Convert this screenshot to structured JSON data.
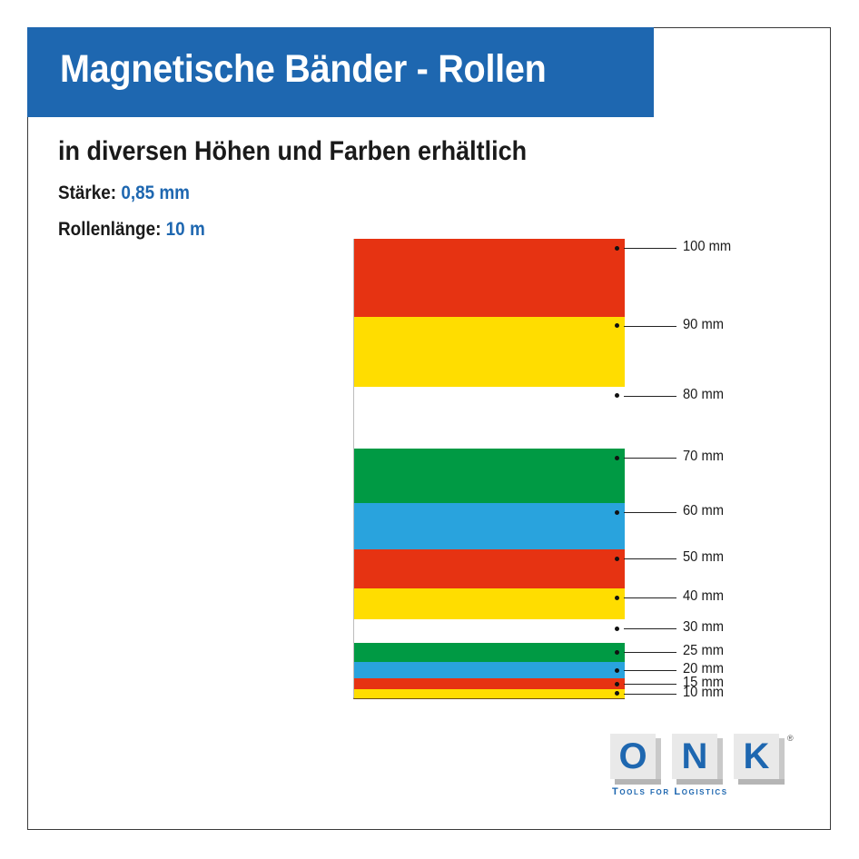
{
  "title": "Magnetische Bänder - Rollen",
  "subtitle": "in diversen Höhen und Farben erhältlich",
  "specs": {
    "thickness_label": "Stärke:",
    "thickness_value": "0,85 mm",
    "length_label": "Rollenlänge:",
    "length_value": "10 m"
  },
  "colors": {
    "brand_blue": "#1e67b0",
    "red": "#e63312",
    "yellow": "#ffdd00",
    "white": "#ffffff",
    "green": "#009a44",
    "blue": "#29a3dd"
  },
  "bands": [
    {
      "label": "100 mm",
      "height_mm": 100,
      "color": "red"
    },
    {
      "label": "90 mm",
      "height_mm": 90,
      "color": "yellow"
    },
    {
      "label": "80 mm",
      "height_mm": 80,
      "color": "white"
    },
    {
      "label": "70 mm",
      "height_mm": 70,
      "color": "green"
    },
    {
      "label": "60 mm",
      "height_mm": 60,
      "color": "blue"
    },
    {
      "label": "50 mm",
      "height_mm": 50,
      "color": "red"
    },
    {
      "label": "40 mm",
      "height_mm": 40,
      "color": "yellow"
    },
    {
      "label": "30 mm",
      "height_mm": 30,
      "color": "white"
    },
    {
      "label": "25 mm",
      "height_mm": 25,
      "color": "green"
    },
    {
      "label": "20 mm",
      "height_mm": 20,
      "color": "blue"
    },
    {
      "label": "15 mm",
      "height_mm": 15,
      "color": "red"
    },
    {
      "label": "10 mm",
      "height_mm": 10,
      "color": "yellow"
    }
  ],
  "logo": {
    "letters": [
      "O",
      "N",
      "K"
    ],
    "registered": "®",
    "tagline": "Tools for Logistics"
  }
}
